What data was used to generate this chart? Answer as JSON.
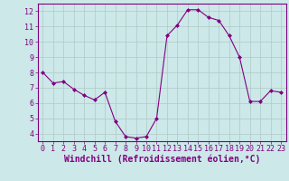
{
  "x": [
    0,
    1,
    2,
    3,
    4,
    5,
    6,
    7,
    8,
    9,
    10,
    11,
    12,
    13,
    14,
    15,
    16,
    17,
    18,
    19,
    20,
    21,
    22,
    23
  ],
  "y": [
    8.0,
    7.3,
    7.4,
    6.9,
    6.5,
    6.2,
    6.7,
    4.8,
    3.8,
    3.7,
    3.8,
    5.0,
    10.4,
    11.1,
    12.1,
    12.1,
    11.6,
    11.4,
    10.4,
    9.0,
    6.1,
    6.1,
    6.8,
    6.7
  ],
  "line_color": "#800080",
  "marker": "D",
  "marker_size": 2,
  "bg_color": "#cce8e8",
  "grid_color": "#b0c8c8",
  "xlabel": "Windchill (Refroidissement éolien,°C)",
  "xlim": [
    -0.5,
    23.5
  ],
  "ylim": [
    3.5,
    12.5
  ],
  "yticks": [
    4,
    5,
    6,
    7,
    8,
    9,
    10,
    11,
    12
  ],
  "xticks": [
    0,
    1,
    2,
    3,
    4,
    5,
    6,
    7,
    8,
    9,
    10,
    11,
    12,
    13,
    14,
    15,
    16,
    17,
    18,
    19,
    20,
    21,
    22,
    23
  ],
  "tick_color": "#800080",
  "label_fontsize": 6,
  "axis_color": "#800080",
  "spine_color": "#800080"
}
